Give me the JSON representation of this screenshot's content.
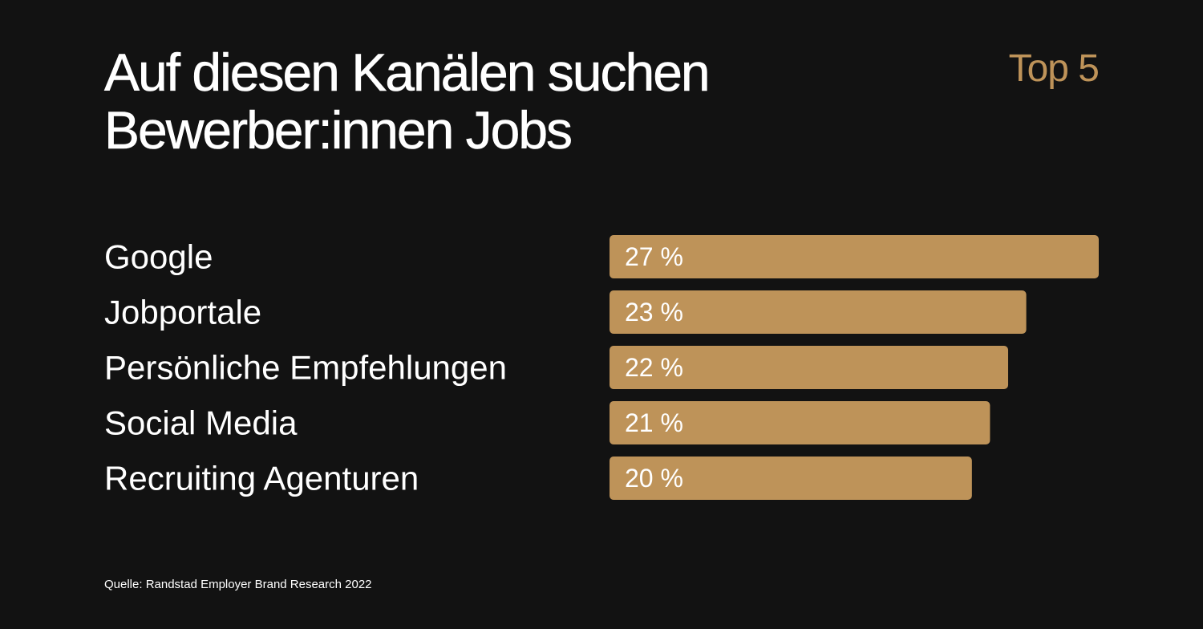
{
  "title_lines": [
    "Auf diesen Kanälen suchen",
    "Bewerber:innen Jobs"
  ],
  "badge": "Top 5",
  "source": "Quelle: Randstad Employer Brand Research 2022",
  "colors": {
    "background": "#121212",
    "bar": "#be9359",
    "accent": "#be9359",
    "text": "#ffffff"
  },
  "chart_data": {
    "type": "bar",
    "orientation": "horizontal",
    "categories": [
      "Google",
      "Jobportale",
      "Persönliche Empfehlungen",
      "Social Media",
      "Recruiting Agenturen"
    ],
    "values": [
      27,
      23,
      22,
      21,
      20
    ],
    "value_labels": [
      "27 %",
      "23 %",
      "22 %",
      "21 %",
      "20 %"
    ],
    "unit": "%",
    "grid": false,
    "legend": "none"
  }
}
